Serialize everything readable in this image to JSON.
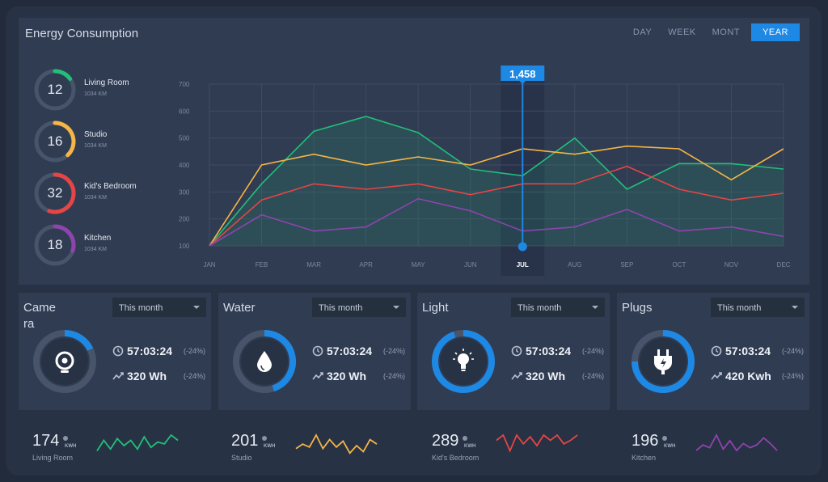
{
  "header": {
    "title": "Energy Consumption",
    "tabs": [
      "DAY",
      "WEEK",
      "MONT",
      "YEAR"
    ],
    "active_tab": "YEAR"
  },
  "rooms": [
    {
      "value": "12",
      "name": "Living Room",
      "sub": "1034 KM",
      "color": "#21c07a",
      "fraction": 0.15
    },
    {
      "value": "16",
      "name": "Studio",
      "sub": "1034 KM",
      "color": "#f5b547",
      "fraction": 0.38
    },
    {
      "value": "32",
      "name": "Kid's Bedroom",
      "sub": "1034 KM",
      "color": "#e64545",
      "fraction": 0.55
    },
    {
      "value": "18",
      "name": "Kitchen",
      "sub": "1034 KM",
      "color": "#8e44ad",
      "fraction": 0.3
    }
  ],
  "chart_data": {
    "type": "line",
    "categories": [
      "JAN",
      "FEB",
      "MAR",
      "APR",
      "MAY",
      "JUN",
      "JUL",
      "AUG",
      "SEP",
      "OCT",
      "NOV",
      "DEC"
    ],
    "y_ticks": [
      "700",
      "600",
      "500",
      "400",
      "300",
      "200",
      "100"
    ],
    "ylim": [
      100,
      700
    ],
    "highlight_category": "JUL",
    "highlight_label": "1,458",
    "series": [
      {
        "color": "#21c07a",
        "values": [
          100,
          330,
          525,
          580,
          520,
          385,
          360,
          500,
          310,
          405,
          405,
          385
        ],
        "fill": true
      },
      {
        "color": "#f5b547",
        "values": [
          100,
          400,
          440,
          400,
          430,
          400,
          460,
          440,
          470,
          460,
          345,
          460
        ]
      },
      {
        "color": "#e64545",
        "values": [
          100,
          270,
          330,
          310,
          330,
          290,
          330,
          330,
          395,
          310,
          270,
          295
        ]
      },
      {
        "color": "#8e44ad",
        "values": [
          100,
          215,
          155,
          170,
          275,
          230,
          155,
          170,
          235,
          155,
          170,
          135
        ]
      }
    ]
  },
  "cards": [
    {
      "title": "Camera",
      "dropdown": "This month",
      "time": "57:03:24",
      "time_delta": "(-24%)",
      "energy": "320 Wh",
      "energy_delta": "(-24%)",
      "icon": "camera-icon",
      "fraction": 0.18
    },
    {
      "title": "Water",
      "dropdown": "This month",
      "time": "57:03:24",
      "time_delta": "(-24%)",
      "energy": "320 Wh",
      "energy_delta": "(-24%)",
      "icon": "water-drop-icon",
      "fraction": 0.45
    },
    {
      "title": "Light",
      "dropdown": "This month",
      "time": "57:03:24",
      "time_delta": "(-24%)",
      "energy": "320 Wh",
      "energy_delta": "(-24%)",
      "icon": "light-bulb-icon",
      "fraction": 0.95
    },
    {
      "title": "Plugs",
      "dropdown": "This month",
      "time": "57:03:24",
      "time_delta": "(-24%)",
      "energy": "420 Kwh",
      "energy_delta": "(-24%)",
      "icon": "plug-icon",
      "fraction": 0.75
    }
  ],
  "accent": "#1e88e5",
  "summaries": [
    {
      "value": "174",
      "unit": "KWH",
      "label": "Living Room",
      "color": "#21c07a",
      "spark": [
        3,
        9,
        4,
        10,
        6,
        9,
        4,
        11,
        5,
        8,
        7,
        12,
        9
      ]
    },
    {
      "value": "201",
      "unit": "KWH",
      "label": "Studio",
      "color": "#f5b547",
      "spark": [
        5,
        8,
        6,
        14,
        5,
        11,
        6,
        10,
        2,
        7,
        3,
        11,
        8
      ]
    },
    {
      "value": "289",
      "unit": "KWH",
      "label": "Kid's Bedroom",
      "color": "#e64545",
      "spark": [
        9,
        12,
        3,
        12,
        7,
        11,
        6,
        12,
        9,
        12,
        7,
        9,
        12
      ]
    },
    {
      "value": "196",
      "unit": "KWH",
      "label": "Kitchen",
      "color": "#8e44ad",
      "spark": [
        4,
        8,
        6,
        15,
        5,
        11,
        4,
        9,
        6,
        8,
        13,
        9,
        4
      ]
    }
  ]
}
